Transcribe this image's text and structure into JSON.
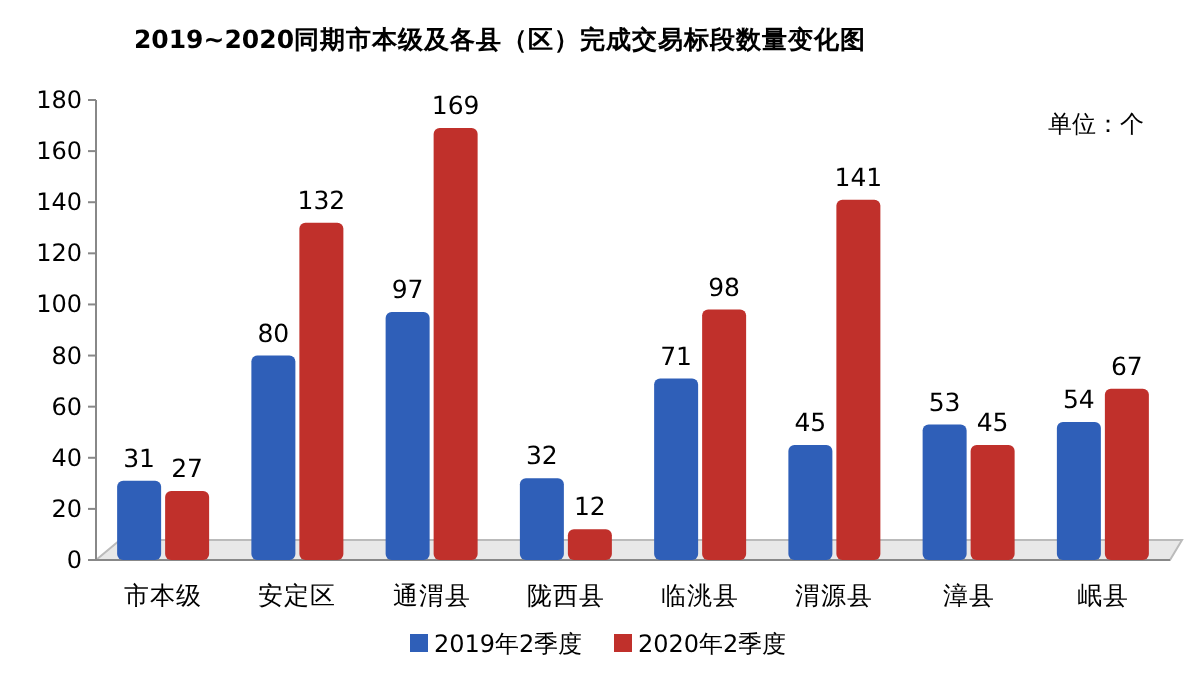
{
  "chart_data": {
    "type": "bar",
    "title": "2019~2020同期市本级及各县（区）完成交易标段数量变化图",
    "annotations": [
      "单位：个"
    ],
    "categories": [
      "市本级",
      "安定区",
      "通渭县",
      "陇西县",
      "临洮县",
      "渭源县",
      "漳县",
      "岷县"
    ],
    "series": [
      {
        "name": "2019年2季度",
        "color": "#2f5fb8",
        "values": [
          31,
          80,
          97,
          32,
          71,
          45,
          53,
          54
        ]
      },
      {
        "name": "2020年2季度",
        "color": "#c0302b",
        "values": [
          27,
          132,
          169,
          12,
          98,
          141,
          45,
          67
        ]
      }
    ],
    "ylim": [
      0,
      180
    ],
    "yticks": [
      0,
      20,
      40,
      60,
      80,
      100,
      120,
      140,
      160,
      180
    ],
    "data_labels": true,
    "legend": "bottom"
  }
}
